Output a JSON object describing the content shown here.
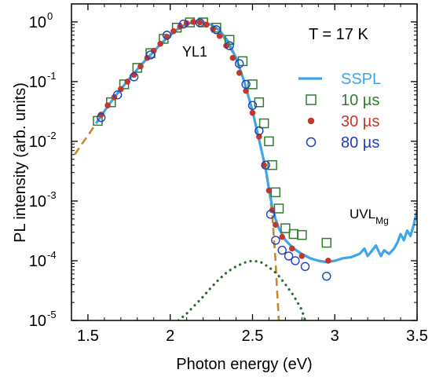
{
  "chart_data": {
    "type": "scatter",
    "xlabel": "Photon energy (eV)",
    "ylabel": "PL intensity (arb. units)",
    "xlim": [
      1.4,
      3.5
    ],
    "ylim": [
      1e-05,
      2
    ],
    "yscale": "log",
    "x_ticks": [
      "1.5",
      "2",
      "2.5",
      "3",
      "3.5"
    ],
    "y_ticks": [
      {
        "value": 1,
        "base": "10",
        "exp": "0"
      },
      {
        "value": 0.1,
        "base": "10",
        "exp": "-1"
      },
      {
        "value": 0.01,
        "base": "10",
        "exp": "-2"
      },
      {
        "value": 0.001,
        "base": "10",
        "exp": "-3"
      },
      {
        "value": 0.0001,
        "base": "10",
        "exp": "-4"
      },
      {
        "value": 1e-05,
        "base": "10",
        "exp": "-5"
      }
    ],
    "legend_position": "right",
    "annotations": {
      "temperature": "T = 17 K",
      "yl1": "YL1",
      "uvl": "UVL",
      "uvl_sub": "Mg"
    },
    "series": [
      {
        "name": "SSPL",
        "kind": "line",
        "color": "#3da5e8",
        "x": [
          1.55,
          1.6,
          1.65,
          1.7,
          1.75,
          1.8,
          1.85,
          1.9,
          1.95,
          2.0,
          2.05,
          2.1,
          2.15,
          2.2,
          2.25,
          2.3,
          2.35,
          2.4,
          2.45,
          2.5,
          2.55,
          2.58,
          2.6,
          2.62,
          2.64,
          2.66,
          2.7,
          2.75,
          2.8,
          2.85,
          2.9,
          2.95,
          3.0,
          3.05,
          3.1,
          3.15,
          3.18,
          3.2,
          3.22,
          3.25,
          3.28,
          3.3,
          3.33,
          3.36,
          3.38,
          3.4,
          3.42,
          3.44,
          3.46,
          3.48,
          3.5
        ],
        "y": [
          0.02,
          0.032,
          0.05,
          0.075,
          0.11,
          0.16,
          0.23,
          0.32,
          0.45,
          0.6,
          0.78,
          0.92,
          1.0,
          0.98,
          0.9,
          0.72,
          0.48,
          0.25,
          0.1,
          0.032,
          0.008,
          0.0035,
          0.0016,
          0.0008,
          0.0005,
          0.00035,
          0.00022,
          0.00016,
          0.00013,
          0.00011,
          0.0001,
          9.5e-05,
          0.0001,
          0.00011,
          0.000115,
          0.00013,
          0.00016,
          0.00012,
          0.00014,
          0.00018,
          0.00012,
          0.00015,
          0.00013,
          0.00016,
          0.0002,
          0.00028,
          0.00022,
          0.00032,
          0.00026,
          0.0004,
          0.0007
        ]
      },
      {
        "name": "10 µs",
        "kind": "square",
        "color": "#2e7d2e",
        "x": [
          1.56,
          1.64,
          1.72,
          1.8,
          1.88,
          1.96,
          2.04,
          2.12,
          2.2,
          2.28,
          2.36,
          2.44,
          2.5,
          2.54,
          2.57,
          2.6,
          2.62,
          2.64,
          2.66,
          2.7,
          2.75,
          2.8,
          2.95
        ],
        "y": [
          0.022,
          0.045,
          0.09,
          0.17,
          0.3,
          0.52,
          0.8,
          0.98,
          0.98,
          0.8,
          0.5,
          0.22,
          0.09,
          0.045,
          0.02,
          0.01,
          0.004,
          0.0014,
          0.00075,
          0.00035,
          0.00028,
          0.00027,
          0.0002
        ]
      },
      {
        "name": "30 µs",
        "kind": "dot",
        "color": "#c0392b",
        "x": [
          1.58,
          1.62,
          1.66,
          1.7,
          1.74,
          1.78,
          1.82,
          1.86,
          1.9,
          1.94,
          1.98,
          2.02,
          2.06,
          2.1,
          2.14,
          2.18,
          2.22,
          2.26,
          2.3,
          2.34,
          2.38,
          2.42,
          2.46,
          2.5,
          2.54,
          2.57,
          2.6,
          2.62,
          2.64,
          2.68,
          2.74,
          2.8,
          2.96
        ],
        "y": [
          0.028,
          0.04,
          0.055,
          0.075,
          0.1,
          0.13,
          0.18,
          0.25,
          0.33,
          0.43,
          0.56,
          0.7,
          0.84,
          0.95,
          1.0,
          0.98,
          0.9,
          0.76,
          0.58,
          0.4,
          0.25,
          0.14,
          0.07,
          0.03,
          0.012,
          0.004,
          0.0015,
          0.0007,
          0.0004,
          0.00025,
          0.00016,
          0.00012,
          0.0001
        ]
      },
      {
        "name": "80 µs",
        "kind": "circle",
        "color": "#1f3fb8",
        "x": [
          1.58,
          1.68,
          1.78,
          1.88,
          1.98,
          2.08,
          2.18,
          2.28,
          2.36,
          2.42,
          2.46,
          2.5,
          2.54,
          2.58,
          2.61,
          2.64,
          2.68,
          2.72,
          2.76,
          2.82,
          2.95
        ],
        "y": [
          0.025,
          0.06,
          0.12,
          0.28,
          0.6,
          0.92,
          0.97,
          0.74,
          0.4,
          0.2,
          0.09,
          0.04,
          0.015,
          0.004,
          0.0006,
          0.00022,
          0.00015,
          0.00012,
          0.0001,
          8e-05,
          5.5e-05
        ]
      },
      {
        "kind": "dashed",
        "color": "#c8892a",
        "x": [
          1.42,
          1.45,
          1.48,
          1.5,
          1.52,
          1.55,
          1.6,
          1.7,
          1.8,
          1.9,
          2.0,
          2.1,
          2.15,
          2.2,
          2.3,
          2.4,
          2.45,
          2.5,
          2.55,
          2.58,
          2.6,
          2.62,
          2.64,
          2.65,
          2.66
        ],
        "y": [
          0.006,
          0.008,
          0.0105,
          0.0125,
          0.015,
          0.02,
          0.032,
          0.075,
          0.16,
          0.32,
          0.6,
          0.92,
          1.0,
          0.98,
          0.72,
          0.25,
          0.1,
          0.032,
          0.008,
          0.0035,
          0.0016,
          0.0006,
          0.0001,
          3e-05,
          1e-05
        ]
      },
      {
        "kind": "dotted",
        "color": "#2e6b2e",
        "x": [
          2.05,
          2.1,
          2.15,
          2.2,
          2.25,
          2.3,
          2.35,
          2.4,
          2.45,
          2.5,
          2.55,
          2.6,
          2.65,
          2.7,
          2.75,
          2.8,
          2.82
        ],
        "y": [
          1e-05,
          1.3e-05,
          1.8e-05,
          2.5e-05,
          3.6e-05,
          5e-05,
          6.6e-05,
          8e-05,
          9.3e-05,
          0.0001,
          9.5e-05,
          7.8e-05,
          6e-05,
          4e-05,
          2.6e-05,
          1.5e-05,
          1e-05
        ]
      }
    ]
  }
}
